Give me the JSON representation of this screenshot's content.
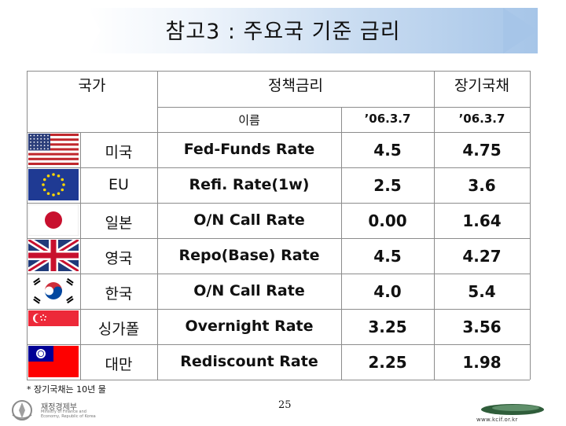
{
  "title": "참고3 : 주요국 기준 금리",
  "table": {
    "header_country": "국가",
    "header_policy": "정책금리",
    "header_bond": "장기국채",
    "sub_name": "이름",
    "sub_policy_date": "’06.3.7",
    "sub_bond_date": "’06.3.7",
    "rows": [
      {
        "flag": "usa-flag-icon",
        "country": "미국",
        "rate_name": "Fed-Funds Rate",
        "policy": "4.5",
        "bond": "4.75"
      },
      {
        "flag": "eu-flag-icon",
        "country": "EU",
        "rate_name": "Refi. Rate(1w)",
        "policy": "2.5",
        "bond": "3.6"
      },
      {
        "flag": "japan-flag-icon",
        "country": "일본",
        "rate_name": "O/N Call Rate",
        "policy": "0.00",
        "bond": "1.64"
      },
      {
        "flag": "uk-flag-icon",
        "country": "영국",
        "rate_name": "Repo(Base) Rate",
        "policy": "4.5",
        "bond": "4.27"
      },
      {
        "flag": "korea-flag-icon",
        "country": "한국",
        "rate_name": "O/N Call Rate",
        "policy": "4.0",
        "bond": "5.4"
      },
      {
        "flag": "singapore-flag-icon",
        "country": "싱가폴",
        "rate_name": "Overnight Rate",
        "policy": "3.25",
        "bond": "3.56"
      },
      {
        "flag": "taiwan-flag-icon",
        "country": "대만",
        "rate_name": "Rediscount Rate",
        "policy": "2.25",
        "bond": "1.98"
      }
    ]
  },
  "footnote": "* 장기국채는 10년 물",
  "page_number": "25",
  "logo_left": {
    "name": "재정경제부",
    "sub": "Ministry of Finance and Economy, Republic of Korea",
    "icon": "ministry-emblem-icon"
  },
  "logo_right": {
    "url": "www.kcif.or.kr",
    "icon": "kcif-logo-icon"
  }
}
